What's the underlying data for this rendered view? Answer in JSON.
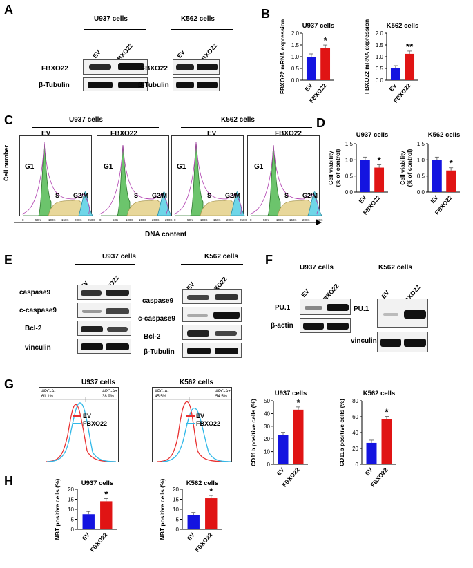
{
  "panels": [
    "A",
    "B",
    "C",
    "D",
    "E",
    "F",
    "G",
    "H"
  ],
  "cells": {
    "u937": "U937 cells",
    "k562": "K562 cells"
  },
  "lanes": {
    "ev": "EV",
    "fbxo22": "FBXO22"
  },
  "proteins": {
    "fbxo22": "FBXO22",
    "tubulin": "β-Tubulin",
    "caspase9": "caspase9",
    "ccasp9": "c-caspase9",
    "bcl2": "Bcl-2",
    "vinculin": "vinculin",
    "pu1": "PU.1",
    "actin": "β-actin"
  },
  "axes": {
    "mrna": "FBXO22 mRNA expression",
    "viability_top": "Cell viability",
    "viability_bottom": "(% of control)",
    "cellnum": "Cell number",
    "dna": "DNA content",
    "cd11b": "CD11b positive cells (%)",
    "nbt": "NBT positive cells (%)"
  },
  "phases": {
    "g1": "G1",
    "s": "S",
    "g2m": "G2/M"
  },
  "flow_gates": {
    "u937_neg": "APC-A-",
    "u937_neg_pct": "61.1%",
    "u937_pos": "APC-A+",
    "u937_pos_pct": "38.9%",
    "k562_neg": "APC-A-",
    "k562_neg_pct": "45.5%",
    "k562_pos": "APC-A+",
    "k562_pos_pct": "54.5%"
  },
  "stars": {
    "one": "*",
    "two": "**"
  },
  "colors": {
    "ev": "#1414e0",
    "fbxo22": "#e01414",
    "ev_hist": "#e83030",
    "fbxo22_hist": "#30b8e8"
  },
  "chart_data": [
    {
      "type": "bar",
      "id": "B-U937",
      "title": "U937 cells",
      "categories": [
        "EV",
        "FBXO22"
      ],
      "values": [
        1.0,
        1.38
      ],
      "ylabel": "FBXO22 mRNA expression",
      "ylim": [
        0,
        2.0
      ],
      "yticks": [
        "0.0",
        "0.5",
        "1.0",
        "1.5",
        "2.0"
      ],
      "annotation": "*"
    },
    {
      "type": "bar",
      "id": "B-K562",
      "title": "K562 cells",
      "categories": [
        "EV",
        "FBXO22"
      ],
      "values": [
        0.5,
        1.12
      ],
      "ylabel": "FBXO22 mRNA expression",
      "ylim": [
        0,
        2.0
      ],
      "yticks": [
        "0.0",
        "0.5",
        "1.0",
        "1.5",
        "2.0"
      ],
      "annotation": "**"
    },
    {
      "type": "bar",
      "id": "D-U937",
      "title": "U937 cells",
      "categories": [
        "EV",
        "FBXO22"
      ],
      "values": [
        1.0,
        0.76
      ],
      "ylabel": "Cell viability (% of control)",
      "ylim": [
        0,
        1.5
      ],
      "yticks": [
        "0.0",
        "0.5",
        "1.0",
        "1.5"
      ],
      "annotation": "*"
    },
    {
      "type": "bar",
      "id": "D-K562",
      "title": "K562 cells",
      "categories": [
        "EV",
        "FBXO22"
      ],
      "values": [
        1.0,
        0.67
      ],
      "ylabel": "Cell viability (% of control)",
      "ylim": [
        0,
        1.5
      ],
      "yticks": [
        "0.0",
        "0.5",
        "1.0",
        "1.5"
      ],
      "annotation": "*"
    },
    {
      "type": "bar",
      "id": "G-U937",
      "title": "U937 cells",
      "categories": [
        "EV",
        "FBXO22"
      ],
      "values": [
        23,
        43
      ],
      "ylabel": "CD11b positive cells (%)",
      "ylim": [
        0,
        50
      ],
      "yticks": [
        "0",
        "10",
        "20",
        "30",
        "40",
        "50"
      ],
      "annotation": "*"
    },
    {
      "type": "bar",
      "id": "G-K562",
      "title": "K562 cells",
      "categories": [
        "EV",
        "FBXO22"
      ],
      "values": [
        27,
        57
      ],
      "ylabel": "CD11b positive cells (%)",
      "ylim": [
        0,
        80
      ],
      "yticks": [
        "0",
        "20",
        "40",
        "60",
        "80"
      ],
      "annotation": "*"
    },
    {
      "type": "bar",
      "id": "H-U937",
      "title": "U937 cells",
      "categories": [
        "EV",
        "FBXO22"
      ],
      "values": [
        7.5,
        14
      ],
      "ylabel": "NBT positive cells (%)",
      "ylim": [
        0,
        20
      ],
      "yticks": [
        "0",
        "5",
        "10",
        "15",
        "20"
      ],
      "annotation": "*"
    },
    {
      "type": "bar",
      "id": "H-K562",
      "title": "K562 cells",
      "categories": [
        "EV",
        "FBXO22"
      ],
      "values": [
        7,
        15.5
      ],
      "ylabel": "NBT positive cells (%)",
      "ylim": [
        0,
        20
      ],
      "yticks": [
        "0",
        "5",
        "10",
        "15",
        "20"
      ],
      "annotation": "*"
    }
  ]
}
